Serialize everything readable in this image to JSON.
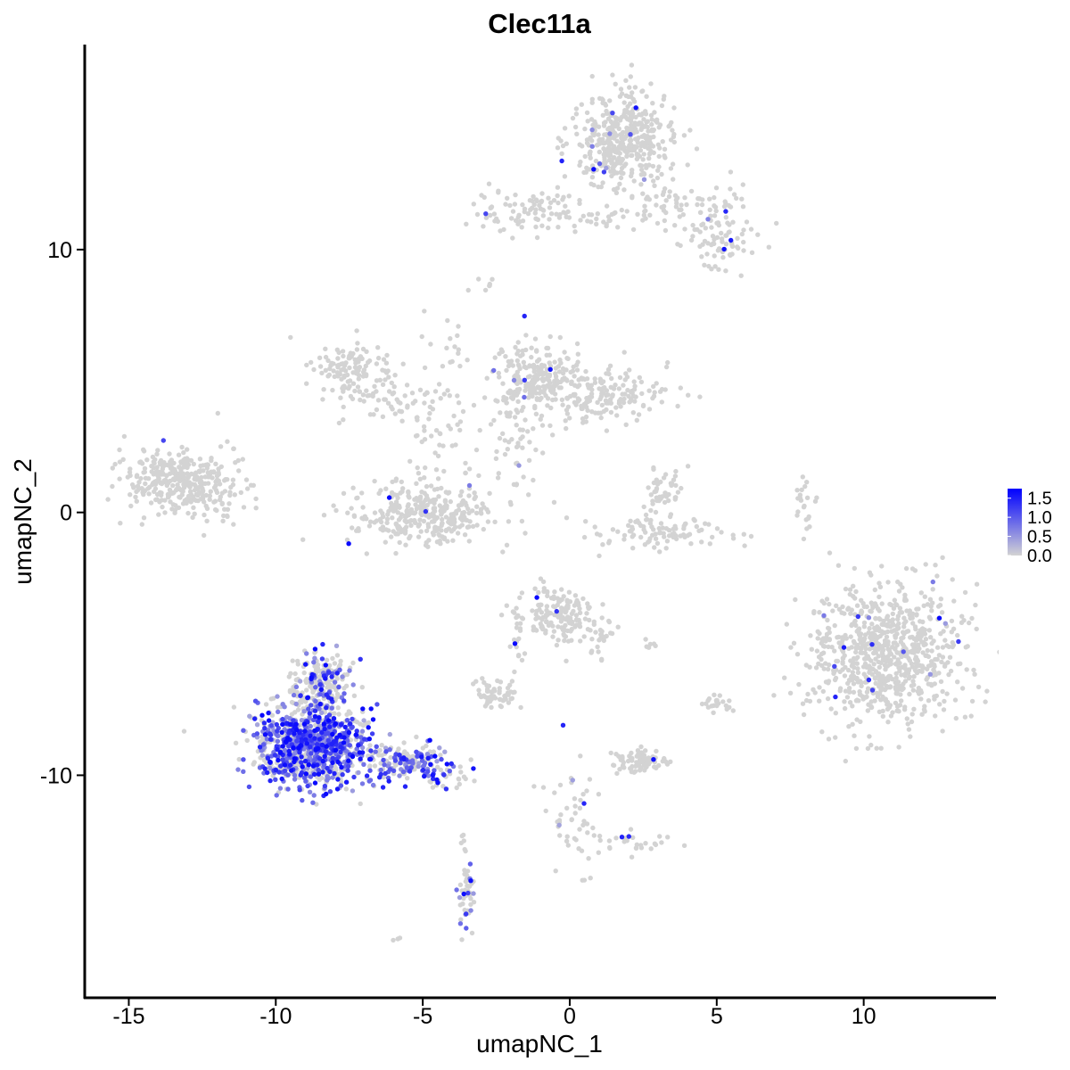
{
  "chart_data": {
    "type": "scatter",
    "title": "Clec11a",
    "xlabel": "umapNC_1",
    "ylabel": "umapNC_2",
    "xlim": [
      -16.5,
      14.5
    ],
    "ylim": [
      -18.5,
      17.8
    ],
    "xticks": [
      "-15",
      "-10",
      "-5",
      "0",
      "5",
      "10"
    ],
    "yticks": [
      "-10",
      "0",
      "10"
    ],
    "grid": false,
    "colors": {
      "low": "#d3d3d3",
      "high": "#0000ff"
    },
    "legend": {
      "position": "right",
      "labels": [
        "1.5",
        "1.0",
        "0.5",
        "0.0"
      ],
      "min": 0.0,
      "max": 1.75
    },
    "clusters": [
      {
        "cx": 1.8,
        "cy": 14.2,
        "sx": 0.85,
        "sy": 0.9,
        "n": 420,
        "expr": 0.03
      },
      {
        "cx": 3.5,
        "cy": 11.6,
        "sx": 1.3,
        "sy": 0.6,
        "n": 90,
        "expr": 0.0
      },
      {
        "cx": 5.2,
        "cy": 10.3,
        "sx": 0.6,
        "sy": 0.5,
        "n": 70,
        "expr": 0.03
      },
      {
        "cx": -1.5,
        "cy": 11.5,
        "sx": 1.0,
        "sy": 0.4,
        "n": 90,
        "expr": 0.02
      },
      {
        "cx": 0.8,
        "cy": 11.2,
        "sx": 0.6,
        "sy": 0.2,
        "n": 18,
        "expr": 0.0
      },
      {
        "cx": -2.7,
        "cy": 8.8,
        "sx": 0.2,
        "sy": 0.15,
        "n": 6,
        "expr": 0.0
      },
      {
        "cx": -7.3,
        "cy": 5.5,
        "sx": 0.65,
        "sy": 0.55,
        "n": 120,
        "expr": 0.0
      },
      {
        "cx": -6.0,
        "cy": 4.2,
        "sx": 1.0,
        "sy": 0.45,
        "n": 50,
        "expr": 0.03
      },
      {
        "cx": -4.1,
        "cy": 5.5,
        "sx": 0.35,
        "sy": 1.4,
        "n": 30,
        "expr": 0.0
      },
      {
        "cx": -5.0,
        "cy": -0.1,
        "sx": 1.2,
        "sy": 0.55,
        "n": 340,
        "expr": 0.01
      },
      {
        "cx": -4.7,
        "cy": 2.5,
        "sx": 0.4,
        "sy": 1.2,
        "n": 35,
        "expr": 0.0
      },
      {
        "cx": -1.2,
        "cy": 5.2,
        "sx": 0.6,
        "sy": 0.6,
        "n": 160,
        "expr": 0.02
      },
      {
        "cx": 0.8,
        "cy": 4.6,
        "sx": 1.3,
        "sy": 0.55,
        "n": 210,
        "expr": 0.0
      },
      {
        "cx": -1.8,
        "cy": 3.4,
        "sx": 0.5,
        "sy": 0.9,
        "n": 60,
        "expr": 0.02
      },
      {
        "cx": -2.1,
        "cy": 1.2,
        "sx": 0.9,
        "sy": 0.4,
        "n": 14,
        "expr": 0.0
      },
      {
        "cx": 3.2,
        "cy": 0.5,
        "sx": 0.35,
        "sy": 0.6,
        "n": 55,
        "expr": 0.0
      },
      {
        "cx": 3.1,
        "cy": -0.8,
        "sx": 1.1,
        "sy": 0.3,
        "n": 90,
        "expr": 0.0
      },
      {
        "cx": -13.5,
        "cy": 1.2,
        "sx": 0.8,
        "sy": 0.6,
        "n": 300,
        "expr": 0.01
      },
      {
        "cx": -12.0,
        "cy": 1.0,
        "sx": 0.6,
        "sy": 0.8,
        "n": 70,
        "expr": 0.0
      },
      {
        "cx": 8.0,
        "cy": 0.2,
        "sx": 0.15,
        "sy": 0.6,
        "n": 22,
        "expr": 0.0
      },
      {
        "cx": 10.7,
        "cy": -5.4,
        "sx": 1.25,
        "sy": 1.35,
        "n": 800,
        "expr": 0.02
      },
      {
        "cx": -0.5,
        "cy": -3.9,
        "sx": 0.65,
        "sy": 0.55,
        "n": 160,
        "expr": 0.01
      },
      {
        "cx": 0.9,
        "cy": -4.8,
        "sx": 0.3,
        "sy": 0.5,
        "n": 30,
        "expr": 0.0
      },
      {
        "cx": -2.5,
        "cy": -6.9,
        "sx": 0.35,
        "sy": 0.25,
        "n": 55,
        "expr": 0.0
      },
      {
        "cx": -1.9,
        "cy": -5.3,
        "sx": 0.15,
        "sy": 0.7,
        "n": 14,
        "expr": 0.0
      },
      {
        "cx": 2.4,
        "cy": -9.5,
        "sx": 0.5,
        "sy": 0.25,
        "n": 80,
        "expr": 0.06
      },
      {
        "cx": 2.8,
        "cy": -5.1,
        "sx": 0.2,
        "sy": 0.15,
        "n": 6,
        "expr": 0.0
      },
      {
        "cx": 5.0,
        "cy": -7.3,
        "sx": 0.25,
        "sy": 0.2,
        "n": 22,
        "expr": 0.03
      },
      {
        "cx": 0.0,
        "cy": -11.5,
        "sx": 0.4,
        "sy": 0.9,
        "n": 45,
        "expr": 0.1
      },
      {
        "cx": 2.1,
        "cy": -12.5,
        "sx": 0.7,
        "sy": 0.3,
        "n": 30,
        "expr": 0.05
      },
      {
        "cx": -3.5,
        "cy": -14.6,
        "sx": 0.15,
        "sy": 0.7,
        "n": 45,
        "expr": 0.25
      },
      {
        "cx": -3.7,
        "cy": -12.5,
        "sx": 0.08,
        "sy": 0.3,
        "n": 6,
        "expr": 0.0
      },
      {
        "cx": -8.8,
        "cy": -8.9,
        "sx": 0.9,
        "sy": 0.75,
        "n": 1000,
        "expr": 0.6
      },
      {
        "cx": -8.5,
        "cy": -6.4,
        "sx": 0.55,
        "sy": 0.6,
        "n": 200,
        "expr": 0.25
      },
      {
        "cx": -5.5,
        "cy": -9.5,
        "sx": 0.85,
        "sy": 0.35,
        "n": 180,
        "expr": 0.55
      },
      {
        "cx": -4.2,
        "cy": -10.2,
        "sx": 0.35,
        "sy": 0.2,
        "n": 20,
        "expr": 0.3
      },
      {
        "cx": -6.0,
        "cy": -16.2,
        "sx": 0.12,
        "sy": 0.1,
        "n": 3,
        "expr": 0.0
      },
      {
        "cx": 0.6,
        "cy": -14.0,
        "sx": 0.1,
        "sy": 0.1,
        "n": 3,
        "expr": 0.2
      }
    ]
  }
}
